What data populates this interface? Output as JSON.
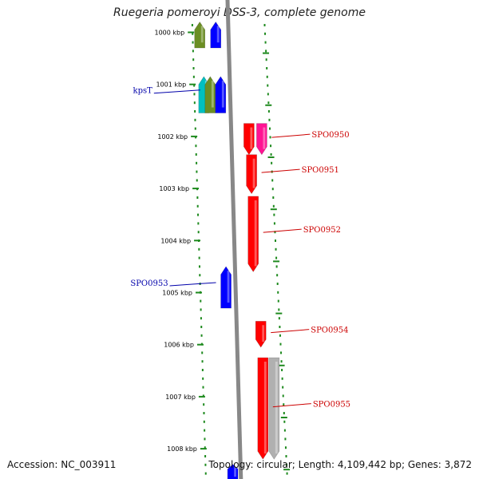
{
  "title": "Ruegeria pomeroyi DSS-3, complete genome",
  "ruler": {
    "unit": "kbp",
    "ticks": [
      {
        "kbp": 1000,
        "label": "1000 kbp"
      },
      {
        "kbp": 1001,
        "label": "1001 kbp"
      },
      {
        "kbp": 1002,
        "label": "1002 kbp"
      },
      {
        "kbp": 1003,
        "label": "1003 kbp"
      },
      {
        "kbp": 1004,
        "label": "1004 kbp"
      },
      {
        "kbp": 1005,
        "label": "1005 kbp"
      },
      {
        "kbp": 1006,
        "label": "1006 kbp"
      },
      {
        "kbp": 1007,
        "label": "1007 kbp"
      },
      {
        "kbp": 1008,
        "label": "1008 kbp"
      }
    ]
  },
  "genes": [
    {
      "strand": "reverse",
      "color": "#6b8e23",
      "start_kbp": 999.8,
      "end_kbp": 1000.3
    },
    {
      "strand": "reverse",
      "color": "#0000ff",
      "start_kbp": 999.8,
      "end_kbp": 1000.3
    },
    {
      "strand": "reverse",
      "color": "#00c0c0",
      "start_kbp": 1000.85,
      "end_kbp": 1001.55
    },
    {
      "strand": "reverse",
      "color": "#6b8e23",
      "start_kbp": 1000.85,
      "end_kbp": 1001.55,
      "label": "kpsT",
      "label_color": "#0000aa"
    },
    {
      "strand": "reverse",
      "color": "#0000ff",
      "start_kbp": 1000.85,
      "end_kbp": 1001.55
    },
    {
      "strand": "forward",
      "color": "#ff0000",
      "start_kbp": 1001.75,
      "end_kbp": 1002.35
    },
    {
      "strand": "forward",
      "color": "#ff1493",
      "start_kbp": 1001.75,
      "end_kbp": 1002.35,
      "label": "SPO0950",
      "label_color": "#cc0000"
    },
    {
      "strand": "forward",
      "color": "#ff0000",
      "start_kbp": 1002.35,
      "end_kbp": 1003.1,
      "label": "SPO0951",
      "label_color": "#cc0000"
    },
    {
      "strand": "forward",
      "color": "#ff0000",
      "start_kbp": 1003.15,
      "end_kbp": 1004.6,
      "label": "SPO0952",
      "label_color": "#cc0000"
    },
    {
      "strand": "reverse",
      "color": "#0000ff",
      "start_kbp": 1004.5,
      "end_kbp": 1005.3,
      "label": "SPO0953",
      "label_color": "#0000aa"
    },
    {
      "strand": "forward",
      "color": "#ff0000",
      "start_kbp": 1005.55,
      "end_kbp": 1006.05,
      "label": "SPO0954",
      "label_color": "#cc0000"
    },
    {
      "strand": "forward",
      "color": "#ff0000",
      "start_kbp": 1006.25,
      "end_kbp": 1008.2,
      "label": "SPO0955",
      "label_color": "#cc0000"
    },
    {
      "strand": "forward",
      "color": "#b0b0b0",
      "start_kbp": 1006.25,
      "end_kbp": 1008.2
    },
    {
      "strand": "reverse",
      "color": "#0000ff",
      "start_kbp": 1008.3,
      "end_kbp": 1008.6
    }
  ],
  "colors": {
    "backbone": "#888888",
    "dots": "#1e8a1e",
    "forward_label": "#cc0000",
    "reverse_label": "#0000aa"
  },
  "footer": {
    "accession": "Accession: NC_003911",
    "summary": "Topology: circular; Length: 4,109,442 bp; Genes: 3,872"
  }
}
